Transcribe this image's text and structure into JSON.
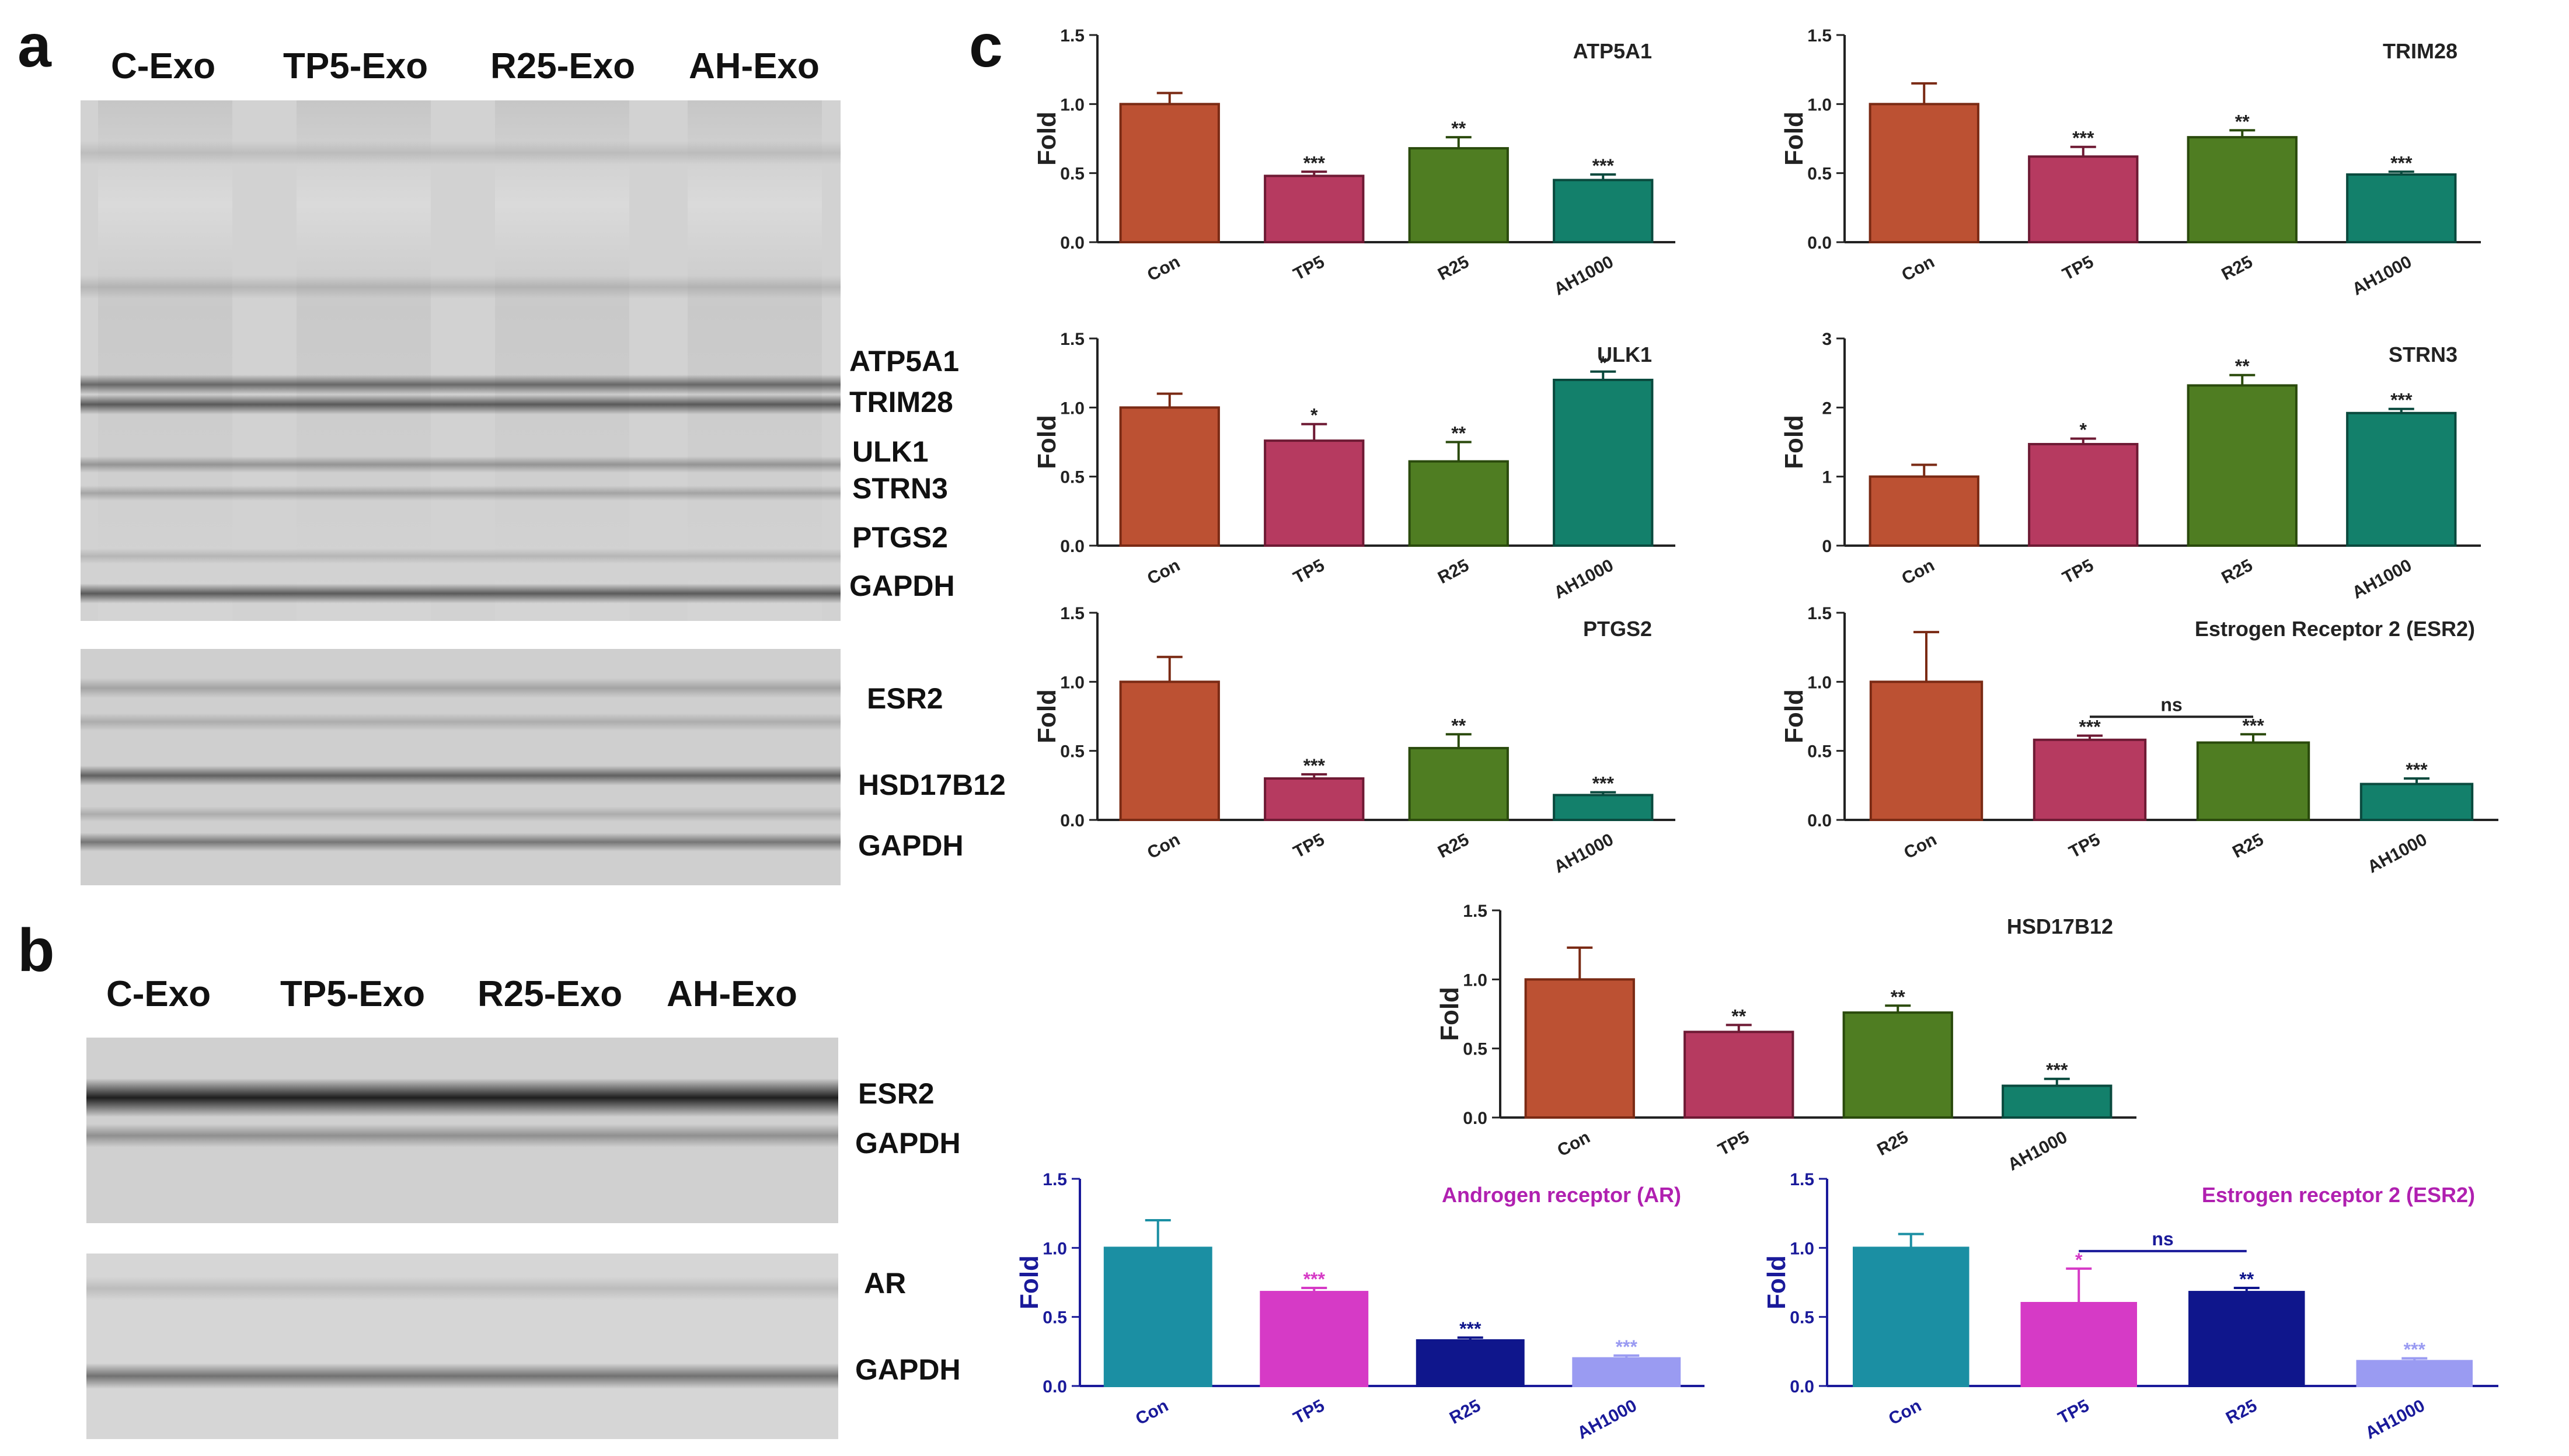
{
  "panels": {
    "a": "a",
    "b": "b",
    "c": "c"
  },
  "panel_a": {
    "lanes": [
      "C-Exo",
      "TP5-Exo",
      "R25-Exo",
      "AH-Exo"
    ],
    "gel1_labels": [
      "ATP5A1",
      "TRIM28",
      "ULK1",
      "STRN3",
      "PTGS2",
      "GAPDH"
    ],
    "gel2_labels": [
      "ESR2",
      "HSD17B12",
      "GAPDH"
    ]
  },
  "panel_b": {
    "lanes": [
      "C-Exo",
      "TP5-Exo",
      "R25-Exo",
      "AH-Exo"
    ],
    "gel1_labels": [
      "ESR2",
      "GAPDH"
    ],
    "gel2_labels": [
      "AR",
      "GAPDH"
    ]
  },
  "colors": {
    "con": "#bc5133",
    "tp5": "#b63a60",
    "r25": "#4f7d22",
    "ah": "#13806b",
    "con2": "#1b8fa3",
    "tp5_2": "#d63ac6",
    "r25_2": "#0f168c",
    "ah_2": "#9a9bf2",
    "axis_blue": "#1a1a9a",
    "title_purple": "#b020b0"
  },
  "chart_data": [
    {
      "type": "bar",
      "title": "ATP5A1",
      "ylabel": "Fold",
      "categories": [
        "Con",
        "TP5",
        "R25",
        "AH1000"
      ],
      "values": [
        1.0,
        0.48,
        0.68,
        0.45
      ],
      "errors": [
        0.08,
        0.03,
        0.08,
        0.04
      ],
      "significance": [
        "",
        "***",
        "**",
        "***"
      ],
      "ylim": [
        0,
        1.5
      ],
      "yticks": [
        "0.0",
        "0.5",
        "1.0",
        "1.5"
      ],
      "grid": false,
      "legend": "none"
    },
    {
      "type": "bar",
      "title": "TRIM28",
      "ylabel": "Fold",
      "categories": [
        "Con",
        "TP5",
        "R25",
        "AH1000"
      ],
      "values": [
        1.0,
        0.62,
        0.76,
        0.49
      ],
      "errors": [
        0.15,
        0.07,
        0.05,
        0.02
      ],
      "significance": [
        "",
        "***",
        "**",
        "***"
      ],
      "ylim": [
        0,
        1.5
      ],
      "yticks": [
        "0.0",
        "0.5",
        "1.0",
        "1.5"
      ],
      "grid": false,
      "legend": "none"
    },
    {
      "type": "bar",
      "title": "ULK1",
      "ylabel": "Fold",
      "categories": [
        "Con",
        "TP5",
        "R25",
        "AH1000"
      ],
      "values": [
        1.0,
        0.76,
        0.61,
        1.2
      ],
      "errors": [
        0.1,
        0.12,
        0.14,
        0.06
      ],
      "significance": [
        "",
        "*",
        "**",
        "*"
      ],
      "ylim": [
        0,
        1.5
      ],
      "yticks": [
        "0.0",
        "0.5",
        "1.0",
        "1.5"
      ],
      "grid": false,
      "legend": "none"
    },
    {
      "type": "bar",
      "title": "STRN3",
      "ylabel": "Fold",
      "categories": [
        "Con",
        "TP5",
        "R25",
        "AH1000"
      ],
      "values": [
        1.0,
        1.47,
        2.32,
        1.92
      ],
      "errors": [
        0.17,
        0.08,
        0.15,
        0.06
      ],
      "significance": [
        "",
        "*",
        "**",
        "***"
      ],
      "ylim": [
        0,
        3
      ],
      "yticks": [
        "0",
        "1",
        "2",
        "3"
      ],
      "grid": false,
      "legend": "none"
    },
    {
      "type": "bar",
      "title": "PTGS2",
      "ylabel": "Fold",
      "categories": [
        "Con",
        "TP5",
        "R25",
        "AH1000"
      ],
      "values": [
        1.0,
        0.3,
        0.52,
        0.18
      ],
      "errors": [
        0.18,
        0.03,
        0.1,
        0.02
      ],
      "significance": [
        "",
        "***",
        "**",
        "***"
      ],
      "ylim": [
        0,
        1.5
      ],
      "yticks": [
        "0.0",
        "0.5",
        "1.0",
        "1.5"
      ],
      "grid": false,
      "legend": "none"
    },
    {
      "type": "bar",
      "title": "Estrogen Receptor 2 (ESR2)",
      "ylabel": "Fold",
      "categories": [
        "Con",
        "TP5",
        "R25",
        "AH1000"
      ],
      "values": [
        1.0,
        0.58,
        0.56,
        0.26
      ],
      "errors": [
        0.36,
        0.03,
        0.06,
        0.04
      ],
      "significance": [
        "",
        "***",
        "***",
        "***"
      ],
      "ns_label": "ns",
      "ylim": [
        0,
        1.5
      ],
      "yticks": [
        "0.0",
        "0.5",
        "1.0",
        "1.5"
      ],
      "grid": false,
      "legend": "none"
    },
    {
      "type": "bar",
      "title": "HSD17B12",
      "ylabel": "Fold",
      "categories": [
        "Con",
        "TP5",
        "R25",
        "AH1000"
      ],
      "values": [
        1.0,
        0.62,
        0.76,
        0.23
      ],
      "errors": [
        0.23,
        0.05,
        0.05,
        0.05
      ],
      "significance": [
        "",
        "**",
        "**",
        "***"
      ],
      "ylim": [
        0,
        1.5
      ],
      "yticks": [
        "0.0",
        "0.5",
        "1.0",
        "1.5"
      ],
      "grid": false,
      "legend": "none"
    },
    {
      "type": "bar",
      "title": "Androgen receptor (AR)",
      "ylabel": "Fold",
      "categories": [
        "Con",
        "TP5",
        "R25",
        "AH1000"
      ],
      "values": [
        1.0,
        0.68,
        0.33,
        0.2
      ],
      "errors": [
        0.2,
        0.03,
        0.02,
        0.02
      ],
      "significance": [
        "",
        "***",
        "***",
        "***"
      ],
      "ylim": [
        0,
        1.5
      ],
      "yticks": [
        "0.0",
        "0.5",
        "1.0",
        "1.5"
      ],
      "grid": false,
      "legend": "none"
    },
    {
      "type": "bar",
      "title": "Estrogen receptor 2 (ESR2)",
      "ylabel": "Fold",
      "categories": [
        "Con",
        "TP5",
        "R25",
        "AH1000"
      ],
      "values": [
        1.0,
        0.6,
        0.68,
        0.18
      ],
      "errors": [
        0.1,
        0.25,
        0.03,
        0.02
      ],
      "significance": [
        "",
        "*",
        "**",
        "***"
      ],
      "ns_label": "ns",
      "ylim": [
        0,
        1.5
      ],
      "yticks": [
        "0.0",
        "0.5",
        "1.0",
        "1.5"
      ],
      "grid": false,
      "legend": "none"
    }
  ]
}
